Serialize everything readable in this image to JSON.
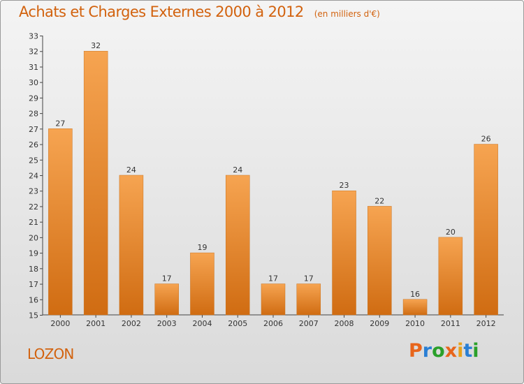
{
  "title": "Achats et Charges Externes 2000 à 2012",
  "subtitle": "(en milliers d'€)",
  "commune": "LOZON",
  "logo": {
    "text": "Proxiti",
    "letters": [
      "P",
      "r",
      "o",
      "x",
      "i",
      "t",
      "i"
    ],
    "colors": [
      "#e8651b",
      "#2a7fd4",
      "#2aa02a",
      "#e8651b",
      "#e8a21b",
      "#2a7fd4",
      "#2aa02a"
    ]
  },
  "chart_data": {
    "type": "bar",
    "title": "Achats et Charges Externes 2000 à 2012",
    "subtitle": "(en milliers d'€)",
    "xlabel": "",
    "ylabel": "",
    "categories": [
      "2000",
      "2001",
      "2002",
      "2003",
      "2004",
      "2005",
      "2006",
      "2007",
      "2008",
      "2009",
      "2010",
      "2011",
      "2012"
    ],
    "values": [
      27,
      32,
      24,
      17,
      19,
      24,
      17,
      17,
      23,
      22,
      16,
      20,
      26
    ],
    "ylim": [
      15,
      33
    ],
    "yticks": [
      15,
      16,
      17,
      18,
      19,
      20,
      21,
      22,
      23,
      24,
      25,
      26,
      27,
      28,
      29,
      30,
      31,
      32,
      33
    ],
    "grid": false,
    "legend": "none",
    "bar_color_light": "#f6a451",
    "bar_color_dark": "#d06c12",
    "label_color": "#333333"
  }
}
